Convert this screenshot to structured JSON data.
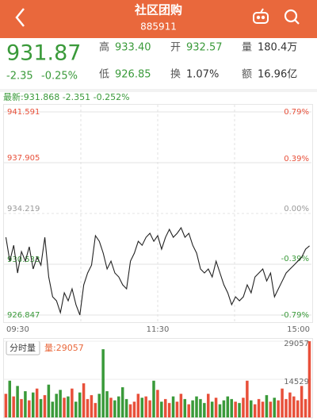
{
  "header": {
    "title": "社区团购",
    "code": "885911"
  },
  "quote": {
    "price": "931.87",
    "change": "-2.35",
    "change_pct": "-0.25%",
    "fields": [
      {
        "label": "高",
        "value": "933.40",
        "color": "#3a9a3a"
      },
      {
        "label": "开",
        "value": "932.57",
        "color": "#3a9a3a"
      },
      {
        "label": "量",
        "value": "180.4万",
        "color": "#333333"
      },
      {
        "label": "低",
        "value": "926.85",
        "color": "#3a9a3a"
      },
      {
        "label": "换",
        "value": "1.07%",
        "color": "#333333"
      },
      {
        "label": "额",
        "value": "16.96亿",
        "color": "#333333"
      }
    ]
  },
  "latest": "最新:931.868 -2.351 -0.252%",
  "chart_data": [
    {
      "type": "line",
      "color": "#222222",
      "up_color": "#e8503a",
      "down_color": "#3a9a3a",
      "flat_color": "#999999",
      "ylim": [
        926.847,
        941.591
      ],
      "yticks": [
        941.591,
        937.905,
        934.219,
        930.533,
        926.847
      ],
      "y2lim": [
        -0.79,
        0.79
      ],
      "y2ticks": [
        {
          "value": 0.79,
          "label": "0.79%"
        },
        {
          "value": 0.39,
          "label": "0.39%"
        },
        {
          "value": 0,
          "label": "0.00%"
        },
        {
          "value": -0.39,
          "label": "-0.39%"
        },
        {
          "value": -0.79,
          "label": "-0.79%"
        }
      ],
      "grid": true,
      "x_labels": [
        "09:30",
        "11:30",
        "15:00"
      ],
      "values": [
        932.49,
        930.76,
        931.91,
        929.9,
        931.45,
        930.76,
        931.8,
        930.19,
        931.05,
        930.47,
        932.49,
        929.61,
        928.17,
        927.88,
        927.02,
        928.46,
        927.88,
        928.75,
        927.6,
        926.85,
        929.04,
        929.9,
        930.47,
        932.61,
        932.2,
        931.34,
        930.19,
        930.76,
        929.9,
        929.61,
        929.04,
        928.75,
        930.76,
        931.34,
        932.2,
        931.91,
        932.49,
        932.78,
        932.2,
        932.61,
        931.63,
        932.49,
        933.07,
        932.49,
        932.78,
        933.18,
        932.49,
        932.78,
        931.91,
        931.34,
        930.19,
        929.9,
        930.19,
        929.61,
        930.76,
        929.9,
        929.04,
        928.46,
        927.6,
        928.17,
        927.88,
        928.17,
        929.04,
        928.46,
        929.61,
        929.9,
        930.19,
        929.32,
        929.9,
        928.17,
        928.75,
        929.32,
        929.9,
        930.19,
        930.47,
        930.76,
        931.05,
        931.63,
        931.87
      ]
    },
    {
      "type": "bar",
      "tab": "分时量",
      "label": "量:29057",
      "up_color": "#e8503a",
      "down_color": "#3a9a3a",
      "ylim": [
        0,
        29057
      ],
      "yticks": [
        29057,
        14529
      ],
      "values": [
        9000,
        14000,
        8000,
        12000,
        7000,
        10000,
        6500,
        9500,
        11000,
        7000,
        8500,
        12500,
        6000,
        9000,
        10500,
        7500,
        8000,
        11000,
        6000,
        9500,
        13000,
        7000,
        8500,
        5500,
        9000,
        26000,
        10000,
        7500,
        6500,
        8000,
        11500,
        7000,
        5000,
        6000,
        9000,
        7500,
        8000,
        6500,
        14000,
        10500,
        6000,
        7000,
        5500,
        8000,
        6000,
        9000,
        7000,
        5000,
        6500,
        8000,
        7000,
        5500,
        9000,
        6000,
        7500,
        5000,
        6500,
        8000,
        7000,
        6000,
        5500,
        7500,
        14000,
        6500,
        5000,
        7000,
        6000,
        8500,
        6000,
        7500,
        6500,
        11000,
        7000,
        9500,
        8000,
        6500,
        12000,
        7000,
        29057
      ]
    }
  ]
}
